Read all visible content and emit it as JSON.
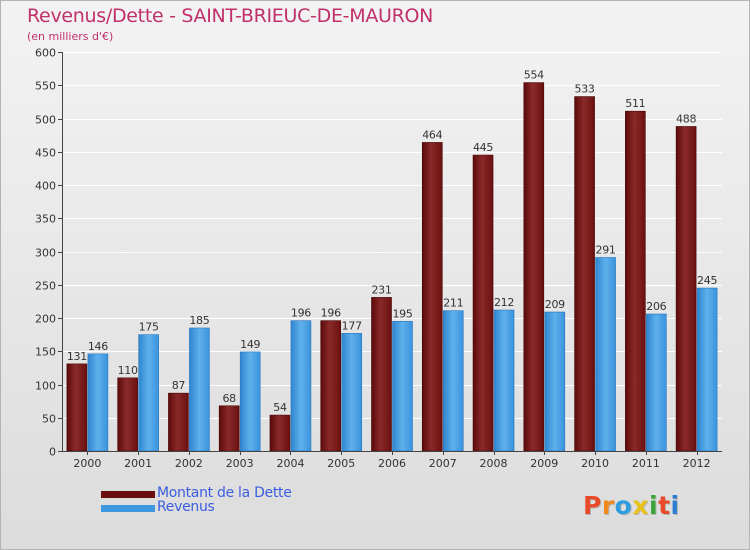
{
  "title": "Revenus/Dette - SAINT-BRIEUC-DE-MAURON",
  "subtitle": "(en milliers d'€)",
  "logo": {
    "letters": [
      "P",
      "r",
      "o",
      "x",
      "i",
      "t",
      "i"
    ],
    "colors": [
      "#e84a2a",
      "#f08a1e",
      "#2f9ee0",
      "#e8c21a",
      "#3aa33a",
      "#e84a2a",
      "#2f7fd0"
    ]
  },
  "colors": {
    "dette": "#7a1212",
    "dette_light": "#9a3a3a",
    "revenus": "#3d97de",
    "revenus_light": "#6fb9ef"
  },
  "chart_data": {
    "type": "bar",
    "categories": [
      "2000",
      "2001",
      "2002",
      "2003",
      "2004",
      "2005",
      "2006",
      "2007",
      "2008",
      "2009",
      "2010",
      "2011",
      "2012"
    ],
    "series": [
      {
        "name": "Montant de la Dette",
        "values": [
          131,
          110,
          87,
          68,
          54,
          196,
          231,
          464,
          445,
          554,
          533,
          511,
          488
        ]
      },
      {
        "name": "Revenus",
        "values": [
          146,
          175,
          185,
          149,
          196,
          177,
          195,
          211,
          212,
          209,
          291,
          206,
          245
        ]
      }
    ],
    "ylim": [
      0,
      600
    ],
    "yticks": [
      "0",
      "50",
      "100",
      "150",
      "200",
      "250",
      "300",
      "350",
      "400",
      "450",
      "500",
      "550",
      "600"
    ],
    "grid": true,
    "legend_position": "bottom-left"
  }
}
